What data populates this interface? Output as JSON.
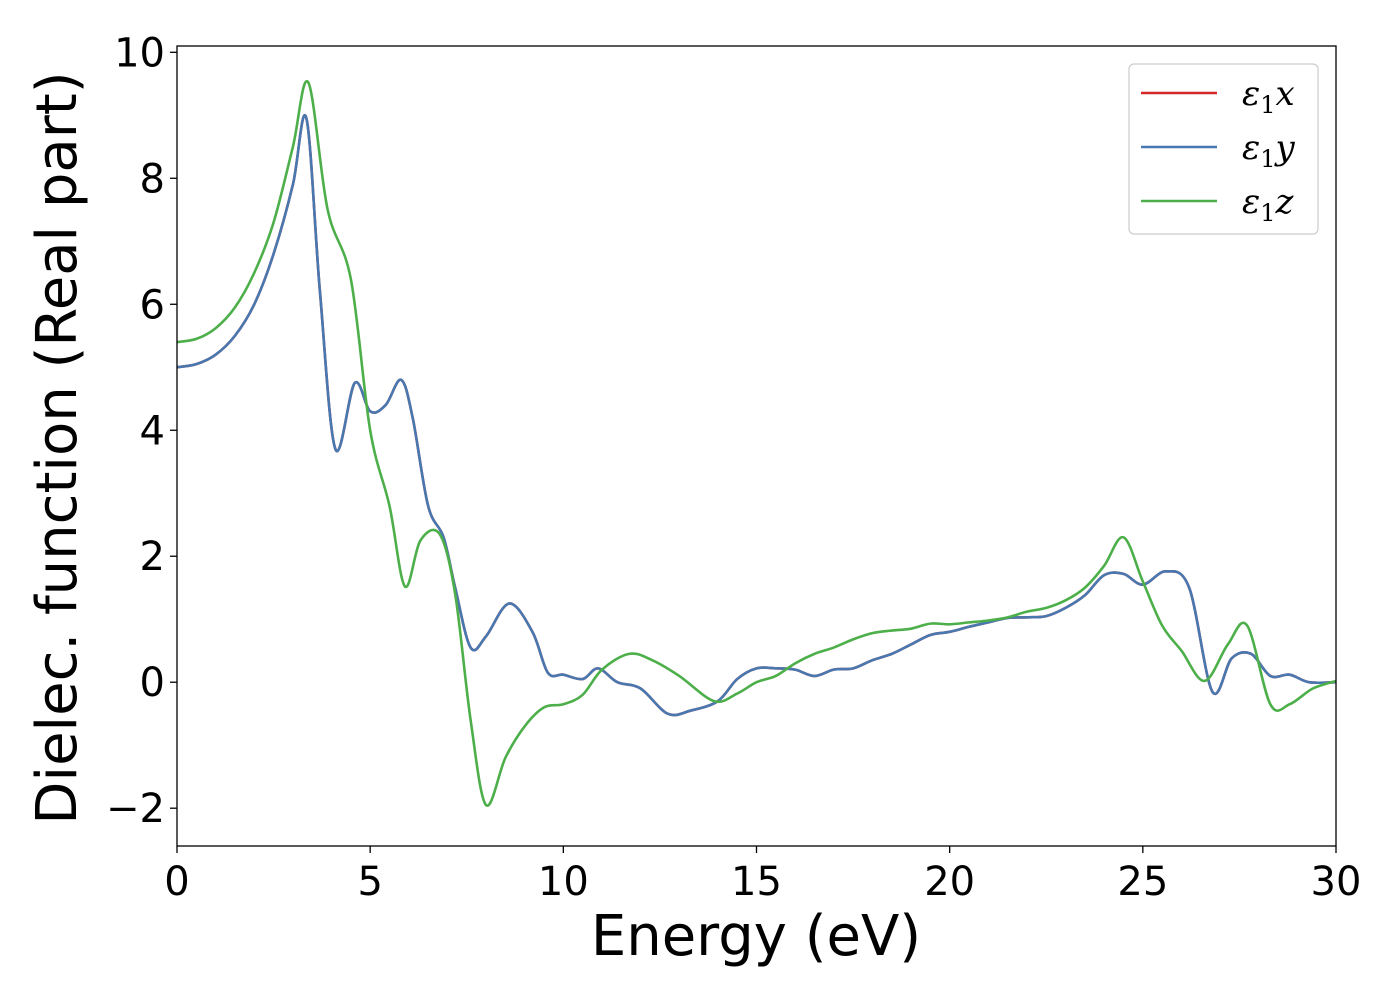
{
  "chart_data": {
    "type": "line",
    "title": "",
    "xlabel": "Energy (eV)",
    "ylabel": "Dielec. function (Real part)",
    "xlim": [
      0,
      30
    ],
    "ylim": [
      -2.6,
      10.1
    ],
    "xticks": [
      0,
      5,
      10,
      15,
      20,
      25,
      30
    ],
    "yticks": [
      -2,
      0,
      2,
      4,
      6,
      8,
      10
    ],
    "xtick_labels": [
      "0",
      "5",
      "10",
      "15",
      "20",
      "25",
      "30"
    ],
    "ytick_labels": [
      "−2",
      "0",
      "2",
      "4",
      "6",
      "8",
      "10"
    ],
    "grid": false,
    "legend_position": "top-right",
    "series": [
      {
        "name": "ε₁x",
        "symbol": "ε",
        "subscript": "1",
        "axis": "x",
        "color": "#d62728",
        "x": [
          0,
          0.5,
          1,
          1.5,
          2,
          2.5,
          3,
          3.35,
          3.7,
          4.1,
          4.6,
          5,
          5.4,
          5.8,
          6.1,
          6.5,
          6.9,
          7.2,
          7.6,
          8.0,
          8.6,
          9.2,
          9.6,
          10,
          10.5,
          10.9,
          11.4,
          12,
          12.7,
          13.3,
          14,
          14.5,
          15,
          15.5,
          16,
          16.5,
          17,
          17.5,
          18,
          18.5,
          19,
          19.5,
          20,
          20.5,
          21,
          21.5,
          22,
          22.5,
          23,
          23.5,
          24,
          24.5,
          25,
          25.6,
          26.2,
          26.8,
          27.3,
          27.8,
          28.3,
          28.8,
          29.3,
          30
        ],
        "values": [
          5.0,
          5.05,
          5.2,
          5.5,
          6.0,
          6.8,
          7.9,
          8.95,
          6.2,
          3.7,
          4.75,
          4.3,
          4.4,
          4.8,
          4.2,
          2.8,
          2.3,
          1.5,
          0.55,
          0.73,
          1.25,
          0.8,
          0.15,
          0.12,
          0.05,
          0.22,
          0.0,
          -0.1,
          -0.5,
          -0.45,
          -0.3,
          0.05,
          0.22,
          0.22,
          0.2,
          0.1,
          0.2,
          0.22,
          0.35,
          0.45,
          0.6,
          0.75,
          0.8,
          0.88,
          0.95,
          1.02,
          1.03,
          1.05,
          1.18,
          1.38,
          1.7,
          1.72,
          1.55,
          1.76,
          1.5,
          -0.15,
          0.38,
          0.45,
          0.1,
          0.12,
          0.0,
          0.0
        ]
      },
      {
        "name": "ε₁y",
        "symbol": "ε",
        "subscript": "1",
        "axis": "y",
        "color": "#4878b0",
        "x": [
          0,
          0.5,
          1,
          1.5,
          2,
          2.5,
          3,
          3.35,
          3.7,
          4.1,
          4.6,
          5,
          5.4,
          5.8,
          6.1,
          6.5,
          6.9,
          7.2,
          7.6,
          8.0,
          8.6,
          9.2,
          9.6,
          10,
          10.5,
          10.9,
          11.4,
          12,
          12.7,
          13.3,
          14,
          14.5,
          15,
          15.5,
          16,
          16.5,
          17,
          17.5,
          18,
          18.5,
          19,
          19.5,
          20,
          20.5,
          21,
          21.5,
          22,
          22.5,
          23,
          23.5,
          24,
          24.5,
          25,
          25.6,
          26.2,
          26.8,
          27.3,
          27.8,
          28.3,
          28.8,
          29.3,
          30
        ],
        "values": [
          5.0,
          5.05,
          5.2,
          5.5,
          6.0,
          6.8,
          7.9,
          8.95,
          6.2,
          3.7,
          4.75,
          4.3,
          4.4,
          4.8,
          4.2,
          2.8,
          2.3,
          1.5,
          0.55,
          0.73,
          1.25,
          0.8,
          0.15,
          0.12,
          0.05,
          0.22,
          0.0,
          -0.1,
          -0.5,
          -0.45,
          -0.3,
          0.05,
          0.22,
          0.22,
          0.2,
          0.1,
          0.2,
          0.22,
          0.35,
          0.45,
          0.6,
          0.75,
          0.8,
          0.88,
          0.95,
          1.02,
          1.03,
          1.05,
          1.18,
          1.38,
          1.7,
          1.72,
          1.55,
          1.76,
          1.5,
          -0.15,
          0.38,
          0.45,
          0.1,
          0.12,
          0.0,
          0.0
        ]
      },
      {
        "name": "ε₁z",
        "symbol": "ε",
        "subscript": "1",
        "axis": "z",
        "color": "#4daf4a",
        "x": [
          0,
          0.5,
          1,
          1.5,
          2,
          2.5,
          3,
          3.4,
          3.9,
          4.5,
          5,
          5.5,
          5.9,
          6.3,
          6.8,
          7.2,
          7.6,
          8.0,
          8.5,
          9,
          9.5,
          10,
          10.5,
          11,
          11.7,
          12.3,
          13,
          13.9,
          14.5,
          15,
          15.5,
          16,
          16.5,
          17,
          17.5,
          18,
          18.5,
          19,
          19.5,
          20,
          20.5,
          21,
          21.5,
          22,
          22.5,
          23,
          23.5,
          24,
          24.5,
          25,
          25.5,
          26,
          26.6,
          27.2,
          27.7,
          28.3,
          28.8,
          29.4,
          30
        ],
        "values": [
          5.4,
          5.45,
          5.62,
          5.95,
          6.5,
          7.3,
          8.5,
          9.52,
          7.5,
          6.4,
          4.0,
          2.8,
          1.52,
          2.25,
          2.35,
          1.4,
          -0.6,
          -1.95,
          -1.2,
          -0.7,
          -0.4,
          -0.35,
          -0.2,
          0.2,
          0.45,
          0.35,
          0.1,
          -0.3,
          -0.18,
          0.0,
          0.1,
          0.3,
          0.45,
          0.55,
          0.68,
          0.78,
          0.82,
          0.85,
          0.93,
          0.92,
          0.95,
          0.98,
          1.03,
          1.12,
          1.18,
          1.3,
          1.5,
          1.85,
          2.3,
          1.6,
          0.9,
          0.5,
          0.02,
          0.6,
          0.9,
          -0.35,
          -0.35,
          -0.1,
          0.02
        ]
      }
    ]
  }
}
